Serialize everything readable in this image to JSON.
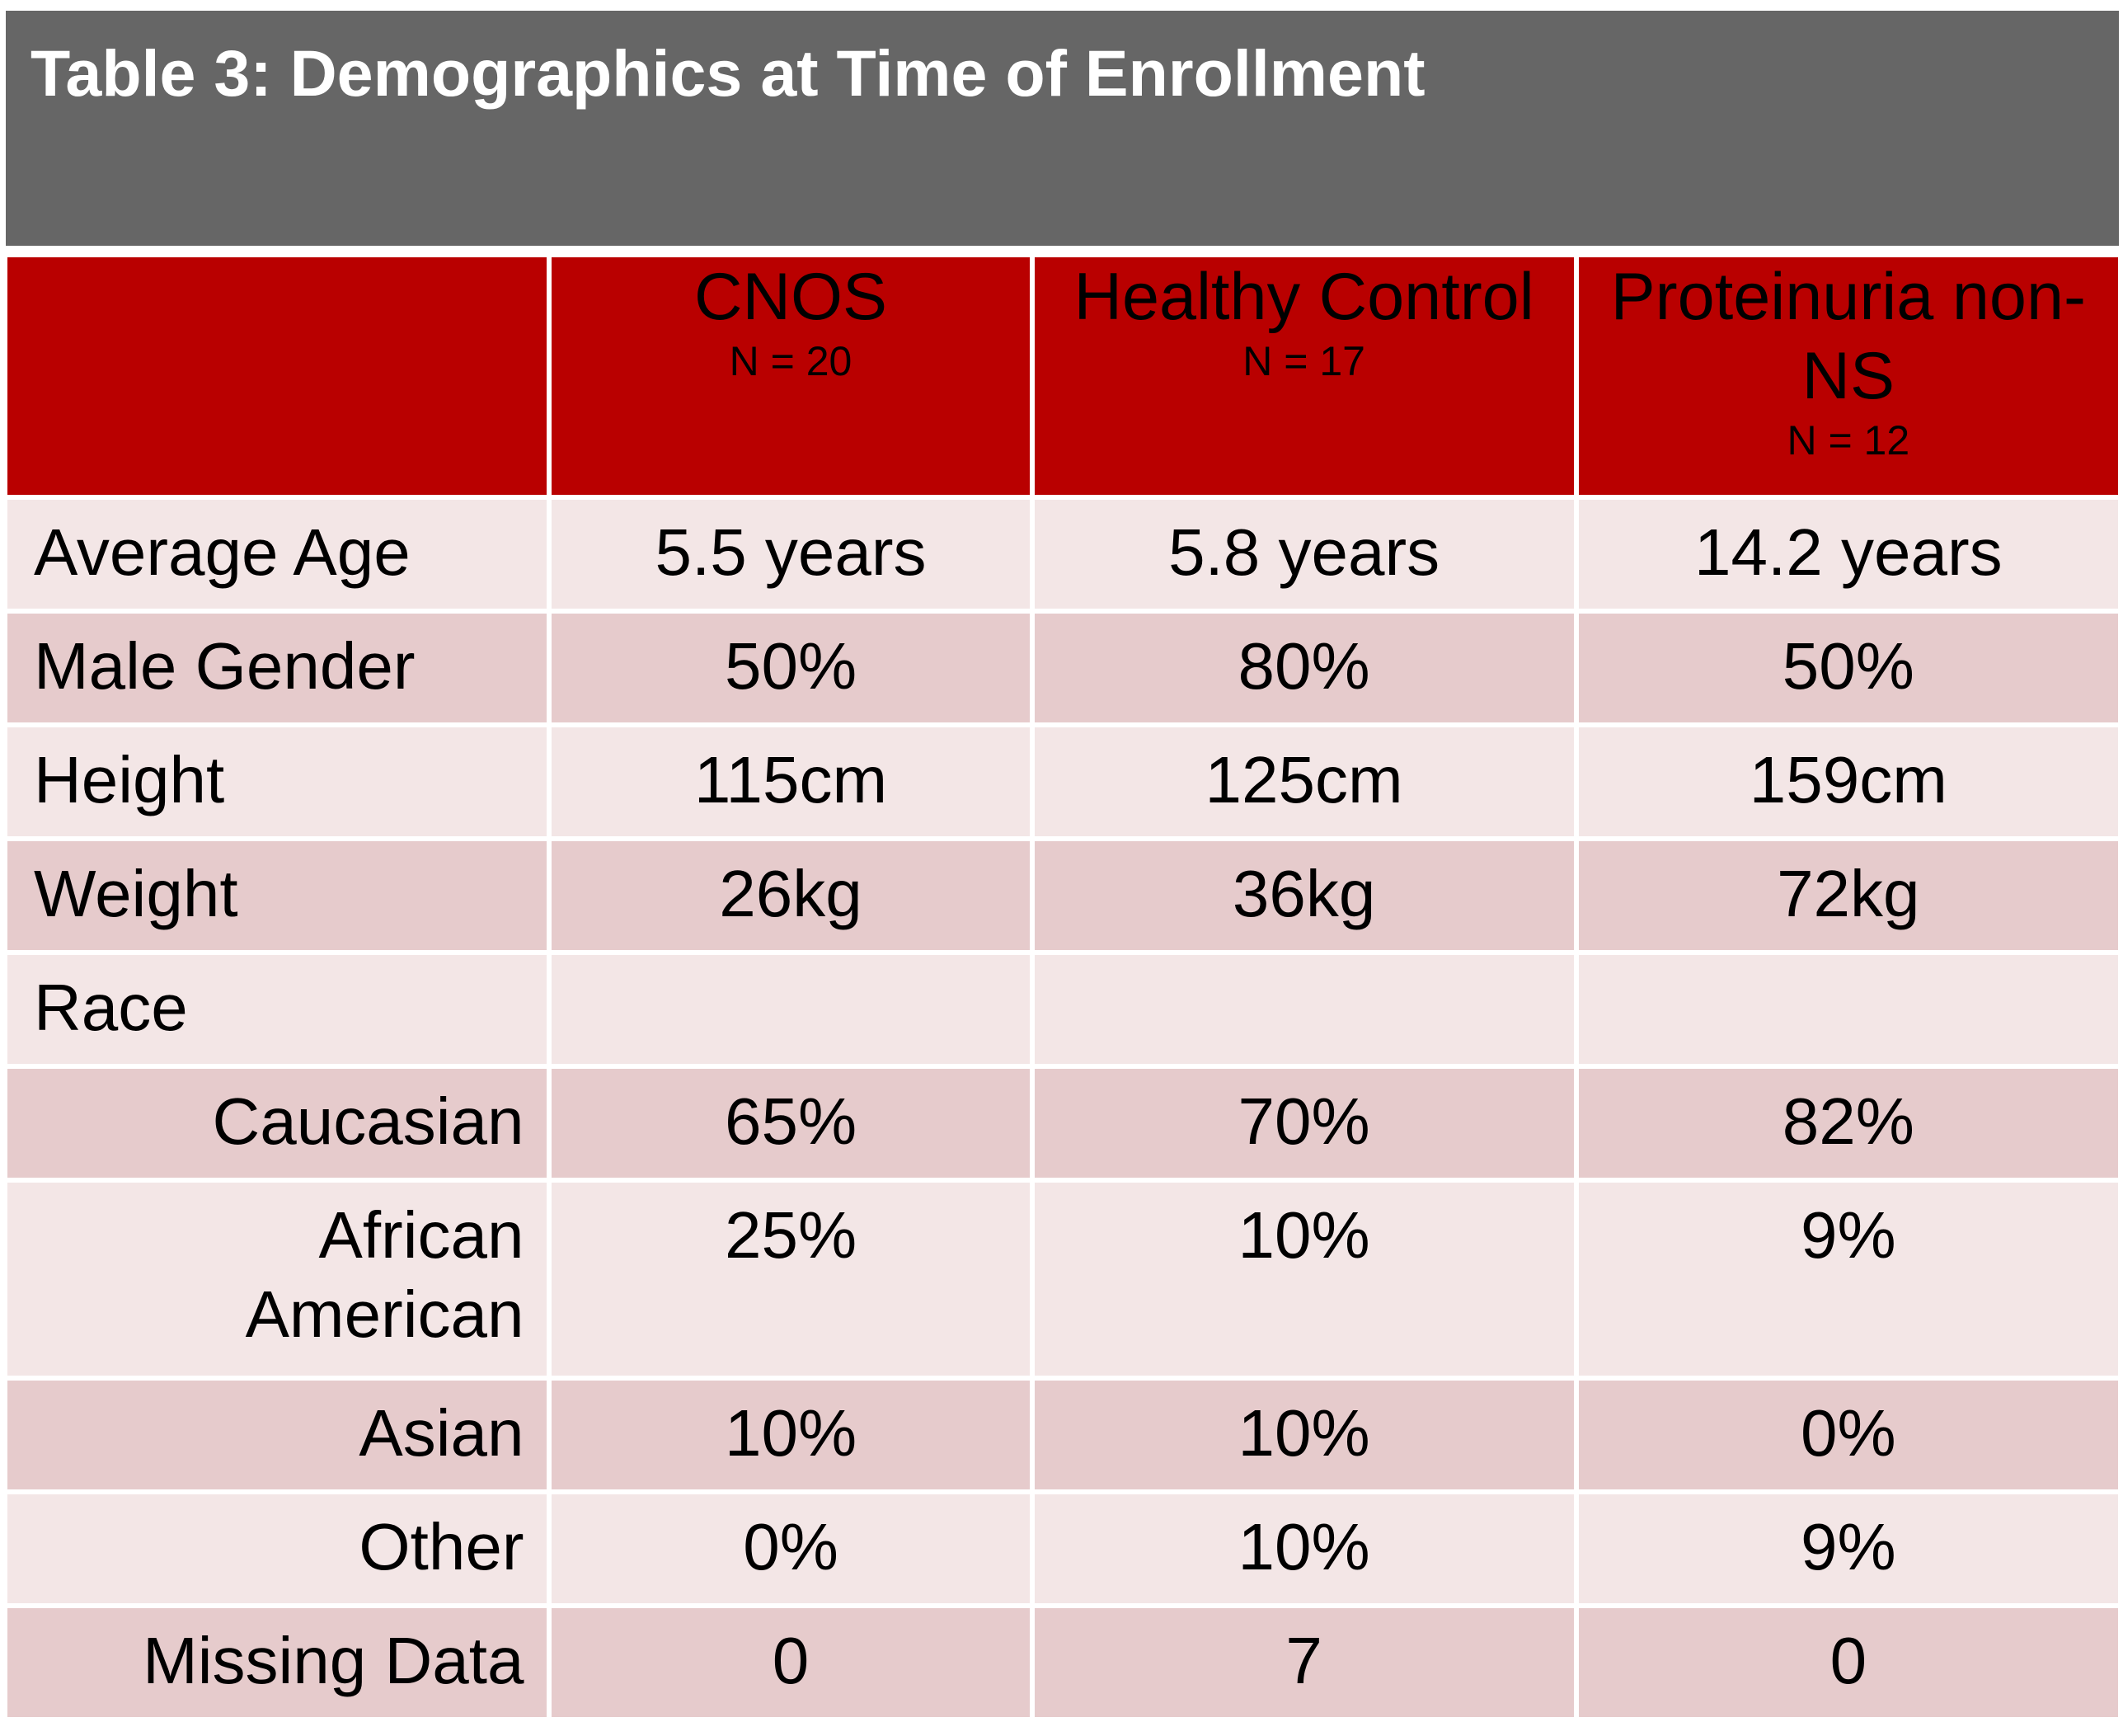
{
  "title": "Table 3: Demographics at Time of Enrollment",
  "columns": [
    {
      "name": "CNOS",
      "n": "N = 20"
    },
    {
      "name": "Healthy Control",
      "n": "N = 17"
    },
    {
      "name": "Proteinuria non-NS",
      "n": "N = 12"
    }
  ],
  "rows": [
    {
      "label": "Average Age",
      "values": [
        "5.5 years",
        "5.8 years",
        "14.2 years"
      ]
    },
    {
      "label": "Male Gender",
      "values": [
        "50%",
        "80%",
        "50%"
      ]
    },
    {
      "label": "Height",
      "values": [
        "115cm",
        "125cm",
        "159cm"
      ]
    },
    {
      "label": "Weight",
      "values": [
        "26kg",
        "36kg",
        "72kg"
      ]
    },
    {
      "label": "Race",
      "values": [
        "",
        "",
        ""
      ]
    },
    {
      "label": "Caucasian",
      "values": [
        "65%",
        "70%",
        "82%"
      ]
    },
    {
      "label": "African American",
      "values": [
        "25%",
        "10%",
        "9%"
      ]
    },
    {
      "label": "Asian",
      "values": [
        "10%",
        "10%",
        "0%"
      ]
    },
    {
      "label": "Other",
      "values": [
        "0%",
        "10%",
        "9%"
      ]
    },
    {
      "label": "Missing Data",
      "values": [
        "0",
        "7",
        "0"
      ]
    }
  ],
  "colors": {
    "title_bar": "#666666",
    "header": "#b90000",
    "row_light": "#f3e6e6",
    "row_dark": "#e6cbcc"
  }
}
